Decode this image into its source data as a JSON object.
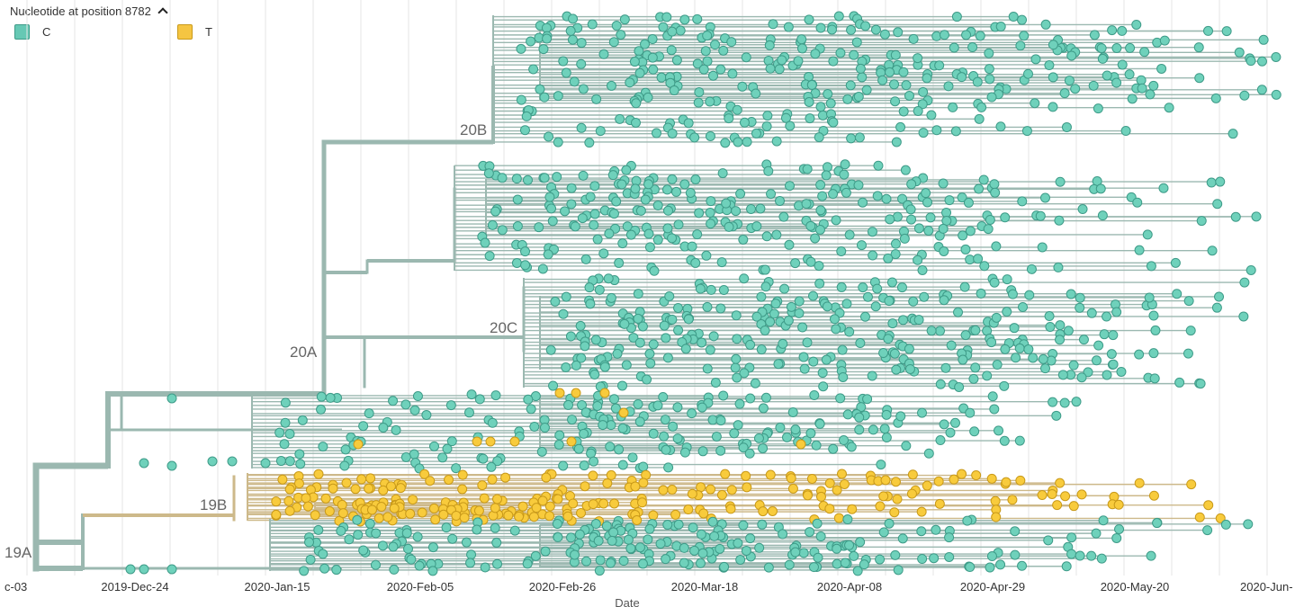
{
  "legend": {
    "title": "Nucleotide at position 8782",
    "items": [
      {
        "label": "C",
        "color": "#66c8b4"
      },
      {
        "label": "T",
        "color": "#f5c542"
      }
    ]
  },
  "colors": {
    "branch_c": "#9bb8b0",
    "branch_t": "#cdb98a",
    "tip_c": "#6fd1bb",
    "tip_c_stroke": "#3e9b88",
    "tip_t": "#f8cb3c",
    "tip_t_stroke": "#c99a1a",
    "grid": "#e6e6e6"
  },
  "chart_data": {
    "type": "phylogenetic-tree",
    "xlabel": "Date",
    "x_ticks": [
      "c-03",
      "2019-Dec-24",
      "2020-Jan-15",
      "2020-Feb-05",
      "2020-Feb-26",
      "2020-Mar-18",
      "2020-Apr-08",
      "2020-Apr-29",
      "2020-May-20",
      "2020-Jun-"
    ],
    "grid": true,
    "clades": [
      "19A",
      "19B",
      "20A",
      "20B",
      "20C"
    ],
    "color_by": "Nucleotide at position 8782",
    "states": [
      "C",
      "T"
    ]
  }
}
